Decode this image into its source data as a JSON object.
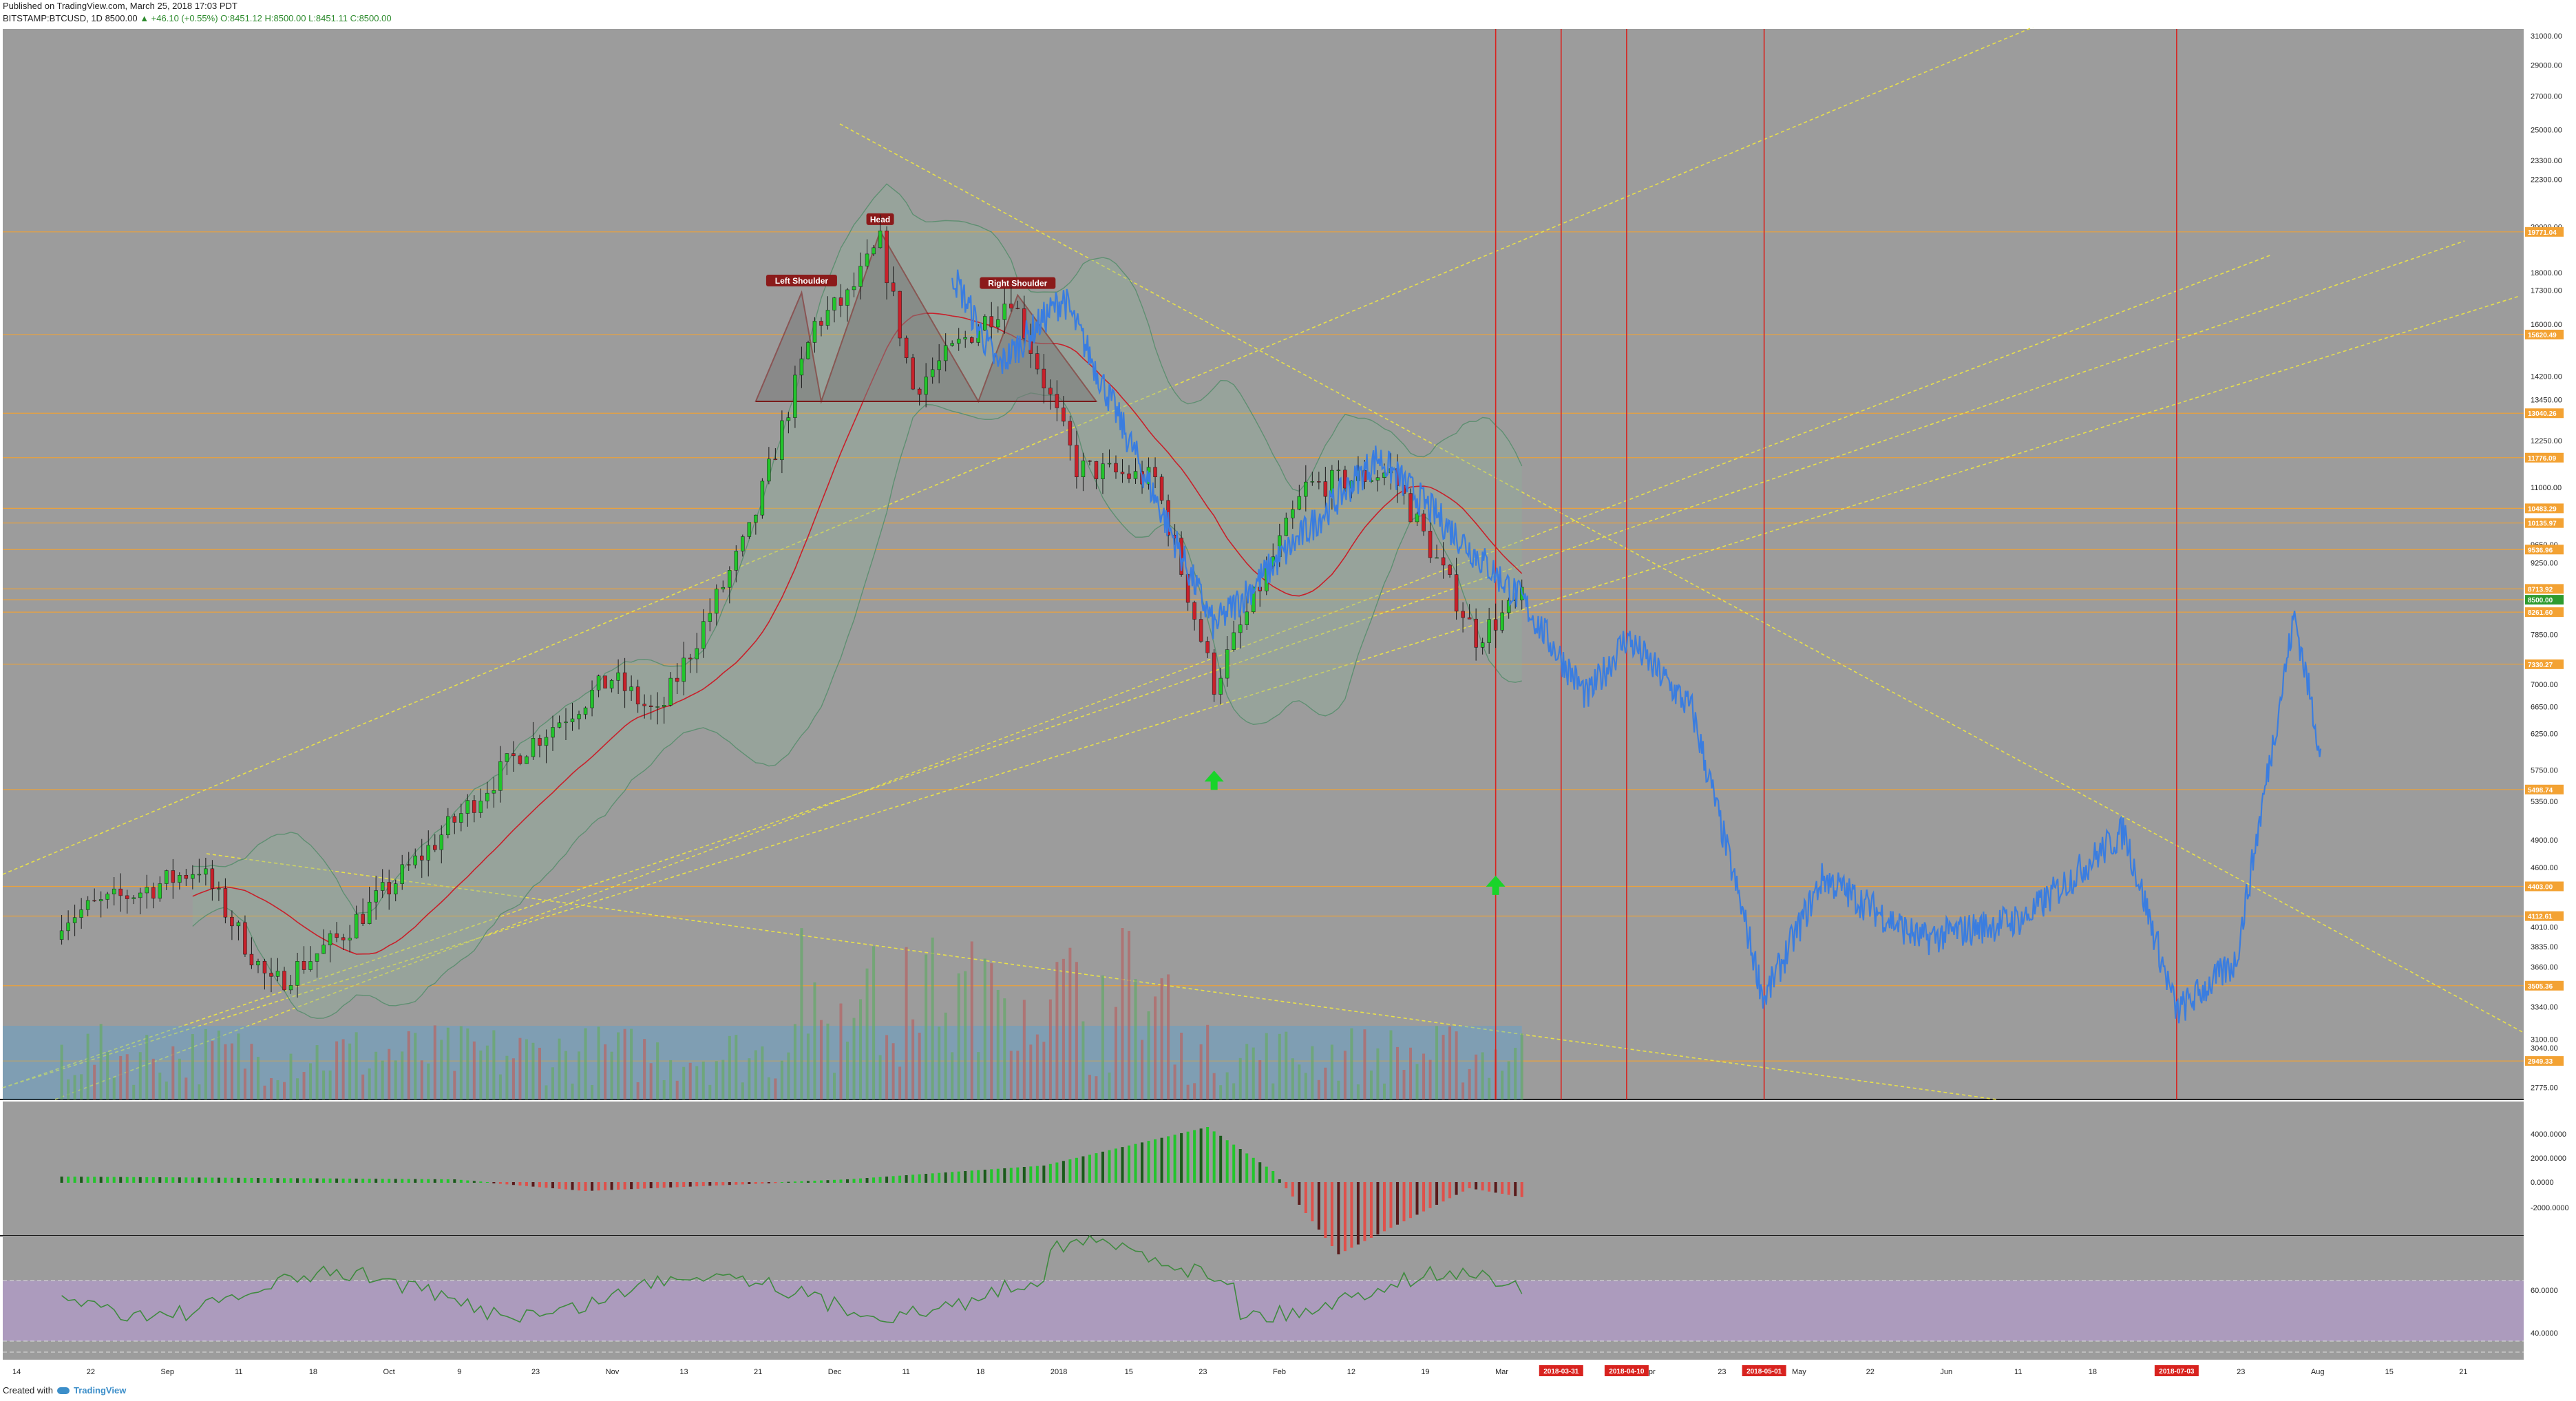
{
  "header": {
    "published": "Published on TradingView.com, March 25, 2018 17:03 PDT",
    "symbol": "BITSTAMP:BTCUSD, 1D",
    "price": "8500.00",
    "change": "▲ +46.10 (+0.55%)",
    "ohlc": "O:8451.12 H:8500.00 L:8451.11 C:8500.00"
  },
  "footer": {
    "created_with": "Created with",
    "brand": "TradingView"
  },
  "colors": {
    "background": "#9c9c9c",
    "bull": "#22c52b",
    "bear": "#c8202a",
    "line": "#3a7de0",
    "level": "#f3a233",
    "trend": "#e8e04a",
    "vline": "#d8231f",
    "rsi_band": "#b29bc8"
  },
  "chart_data": {
    "type": "line",
    "title": "",
    "price_axis": {
      "labels": [
        "31000.00",
        "29000.00",
        "27000.00",
        "25000.00",
        "23300.00",
        "22300.00",
        "20000.00",
        "18000.00",
        "17300.00",
        "16000.00",
        "15700.00",
        "14200.00",
        "13450.00",
        "12250.00",
        "11000.00",
        "9650.00",
        "9250.00",
        "7850.00",
        "7000.00",
        "6650.00",
        "6250.00",
        "5750.00",
        "5350.00",
        "4900.00",
        "4600.00",
        "4010.00",
        "3835.00",
        "3660.00",
        "3340.00",
        "3100.00",
        "3040.00",
        "2775.00"
      ],
      "tags": [
        "19771.04",
        "15620.49",
        "13040.26",
        "11776.09",
        "10483.29",
        "10135.97",
        "9536.96",
        "8713.92",
        "8500.00",
        "8261.60",
        "7330.27",
        "5498.74",
        "4403.00",
        "4112.61",
        "3505.36",
        "2949.33"
      ]
    },
    "time_axis": {
      "labels": [
        "14",
        "22",
        "Sep",
        "11",
        "18",
        "Oct",
        "9",
        "23",
        "Nov",
        "13",
        "21",
        "Dec",
        "11",
        "18",
        "2018",
        "15",
        "23",
        "Feb",
        "12",
        "19",
        "Mar",
        "12",
        "Apr",
        "23",
        "May",
        "22",
        "Jun",
        "11",
        "18",
        "9",
        "23",
        "Aug",
        "15",
        "21"
      ],
      "markers": [
        "2018-03-31",
        "2018-04-10",
        "2018-05-01",
        "2018-07-03"
      ]
    },
    "pattern": {
      "left_shoulder": "Left Shoulder",
      "head": "Head",
      "right_shoulder": "Right Shoulder"
    },
    "series": [
      {
        "kind": "candles",
        "x": [
          "2017-08-14",
          "2017-08-28",
          "2017-09-04",
          "2017-09-15",
          "2017-09-25",
          "2017-10-09",
          "2017-10-23",
          "2017-11-06",
          "2017-11-13",
          "2017-11-27",
          "2017-12-07",
          "2017-12-12",
          "2017-12-17",
          "2017-12-22",
          "2018-01-06",
          "2018-01-16",
          "2018-01-28",
          "2018-02-06",
          "2018-02-20",
          "2018-03-05",
          "2018-03-18",
          "2018-03-25"
        ],
        "close": [
          4100,
          4400,
          4600,
          3500,
          3900,
          4800,
          6000,
          7100,
          6500,
          9900,
          16000,
          17000,
          19300,
          13800,
          17100,
          11500,
          11200,
          7000,
          11000,
          11400,
          7800,
          8500
        ]
      },
      {
        "kind": "projection",
        "x": [
          "2018-03-25",
          "2018-04-04",
          "2018-04-10",
          "2018-04-20",
          "2018-05-01",
          "2018-05-10",
          "2018-05-25",
          "2018-06-10",
          "2018-06-25",
          "2018-07-03",
          "2018-07-12",
          "2018-07-21",
          "2018-07-25"
        ],
        "y": [
          8500,
          6800,
          7800,
          6600,
          3400,
          4500,
          3900,
          4100,
          5000,
          3300,
          3700,
          8200,
          6000
        ]
      }
    ],
    "macd_axis": [
      "4000.0000",
      "2000.0000",
      "0.0000",
      "-2000.0000"
    ],
    "rsi_axis": [
      "60.0000",
      "40.0000"
    ]
  }
}
